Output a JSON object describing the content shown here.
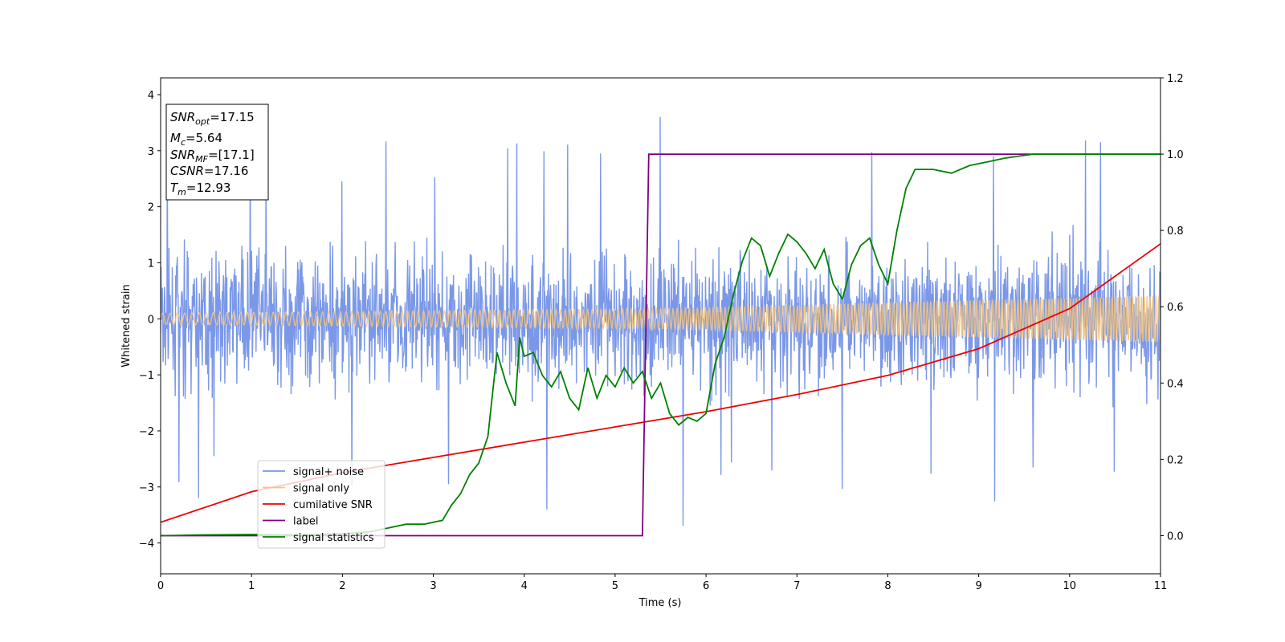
{
  "chart_data": {
    "type": "line",
    "xlabel": "Time (s)",
    "ylabel": "Whitened strain",
    "xlim": [
      0,
      11
    ],
    "ylim": [
      -4.55,
      4.3
    ],
    "y2lim": [
      -0.1,
      1.2
    ],
    "x_ticks": [
      0,
      1,
      2,
      3,
      4,
      5,
      6,
      7,
      8,
      9,
      10,
      11
    ],
    "y_ticks": [
      4,
      3,
      2,
      1,
      0,
      -1,
      -2,
      -3,
      -4
    ],
    "y2_ticks": [
      1.2,
      1.0,
      0.8,
      0.6,
      0.4,
      0.2,
      0.0
    ],
    "x_tick_labels": [
      "0",
      "1",
      "2",
      "3",
      "4",
      "5",
      "6",
      "7",
      "8",
      "9",
      "10",
      "11"
    ],
    "y_tick_labels": [
      "4",
      "3",
      "2",
      "1",
      "0",
      "−1",
      "−2",
      "−3",
      "−4"
    ],
    "y2_tick_labels": [
      "1.2",
      "1.0",
      "0.8",
      "0.6",
      "0.4",
      "0.2",
      "0.0"
    ],
    "grid": false,
    "legend_position": "lower-left",
    "colors": {
      "signal_noise": "#7896e8",
      "signal_only": "#f5c47e",
      "cumulative_snr": "#ee0000",
      "label": "#800080",
      "signal_statistics": "#008000"
    },
    "info_box": {
      "snr_opt": {
        "base": "SNR",
        "sub": "opt",
        "value": "=17.15"
      },
      "mc": {
        "base": "M",
        "sub": "c",
        "value": "=5.64"
      },
      "snr_mf": {
        "base": "SNR",
        "sub": "MF",
        "value": "=[17.1]"
      },
      "csnr": {
        "base": "CSNR",
        "value": "=17.16"
      },
      "tm": {
        "base": "T",
        "sub": "m",
        "value": "=12.93"
      }
    },
    "series": [
      {
        "name": "signal+ noise",
        "axis": "left",
        "description_values": {
          "typical_range": [
            -2.2,
            2.2
          ],
          "peak_max": 3.9,
          "peak_min": -4.15
        }
      },
      {
        "name": "signal only",
        "axis": "left",
        "envelope": {
          "x": [
            0,
            5.5,
            11
          ],
          "amplitude": [
            0.1,
            0.18,
            0.42
          ]
        }
      },
      {
        "name": "cumilative SNR",
        "axis": "right",
        "x": [
          0,
          1,
          2,
          3,
          4,
          5,
          6,
          7,
          8,
          9,
          10,
          11
        ],
        "y": [
          0.035,
          0.115,
          0.165,
          0.205,
          0.245,
          0.285,
          0.325,
          0.37,
          0.42,
          0.49,
          0.595,
          0.765
        ]
      },
      {
        "name": "label",
        "axis": "right",
        "x": [
          0,
          5.3,
          5.37,
          11
        ],
        "y": [
          0.0,
          0.0,
          1.0,
          1.0
        ]
      },
      {
        "name": "signal statistics",
        "axis": "right",
        "x": [
          0,
          0.5,
          1,
          1.5,
          2,
          2.3,
          2.5,
          2.7,
          2.9,
          3.0,
          3.1,
          3.2,
          3.3,
          3.4,
          3.5,
          3.6,
          3.7,
          3.8,
          3.9,
          3.95,
          4.0,
          4.1,
          4.2,
          4.3,
          4.4,
          4.5,
          4.6,
          4.7,
          4.8,
          4.9,
          5.0,
          5.1,
          5.2,
          5.3,
          5.4,
          5.5,
          5.6,
          5.7,
          5.8,
          5.9,
          6.0,
          6.1,
          6.2,
          6.3,
          6.4,
          6.5,
          6.6,
          6.7,
          6.8,
          6.9,
          7.0,
          7.1,
          7.2,
          7.3,
          7.4,
          7.5,
          7.6,
          7.7,
          7.8,
          7.9,
          8.0,
          8.1,
          8.2,
          8.3,
          8.5,
          8.7,
          8.9,
          9.1,
          9.3,
          9.6,
          10.0,
          10.5,
          11.0
        ],
        "y": [
          0.0,
          0.002,
          0.003,
          0.002,
          0.005,
          0.01,
          0.02,
          0.03,
          0.03,
          0.035,
          0.04,
          0.08,
          0.11,
          0.16,
          0.19,
          0.26,
          0.48,
          0.4,
          0.34,
          0.52,
          0.47,
          0.48,
          0.42,
          0.39,
          0.43,
          0.36,
          0.33,
          0.44,
          0.36,
          0.42,
          0.39,
          0.44,
          0.4,
          0.43,
          0.36,
          0.4,
          0.32,
          0.29,
          0.31,
          0.3,
          0.32,
          0.45,
          0.52,
          0.63,
          0.72,
          0.78,
          0.76,
          0.68,
          0.74,
          0.79,
          0.77,
          0.74,
          0.7,
          0.75,
          0.66,
          0.62,
          0.71,
          0.76,
          0.78,
          0.71,
          0.66,
          0.8,
          0.91,
          0.96,
          0.96,
          0.95,
          0.97,
          0.98,
          0.99,
          1.0,
          1.0,
          1.0,
          1.0
        ]
      }
    ]
  }
}
